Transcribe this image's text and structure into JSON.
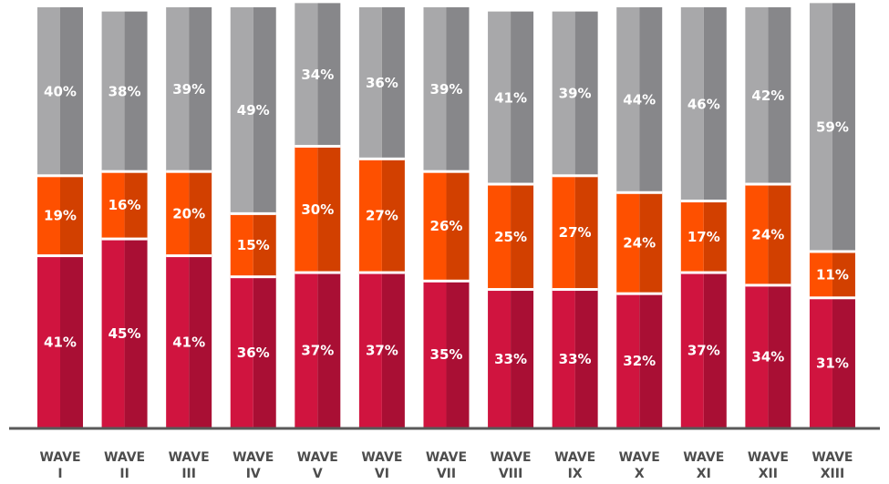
{
  "chart_data": {
    "type": "bar",
    "stacked": true,
    "orientation": "vertical",
    "categories": [
      [
        "WAVE",
        "I"
      ],
      [
        "WAVE",
        "II"
      ],
      [
        "WAVE",
        "III"
      ],
      [
        "WAVE",
        "IV"
      ],
      [
        "WAVE",
        "V"
      ],
      [
        "WAVE",
        "VI"
      ],
      [
        "WAVE",
        "VII"
      ],
      [
        "WAVE",
        "VIII"
      ],
      [
        "WAVE",
        "IX"
      ],
      [
        "WAVE",
        "X"
      ],
      [
        "WAVE",
        "XI"
      ],
      [
        "WAVE",
        "XII"
      ],
      [
        "WAVE",
        "XIII"
      ]
    ],
    "series": [
      {
        "values": [
          41,
          45,
          41,
          36,
          37,
          37,
          35,
          33,
          33,
          32,
          37,
          34,
          31
        ],
        "labels": [
          "41%",
          "45%",
          "41%",
          "36%",
          "37%",
          "37%",
          "35%",
          "33%",
          "33%",
          "32%",
          "37%",
          "34%",
          "31%"
        ]
      },
      {
        "values": [
          19,
          16,
          20,
          15,
          30,
          27,
          26,
          25,
          27,
          24,
          17,
          24,
          11
        ],
        "labels": [
          "19%",
          "16%",
          "20%",
          "15%",
          "30%",
          "27%",
          "26%",
          "25%",
          "27%",
          "24%",
          "17%",
          "24%",
          "11%"
        ]
      },
      {
        "values": [
          40,
          38,
          39,
          49,
          34,
          36,
          39,
          41,
          39,
          44,
          46,
          42,
          59
        ],
        "labels": [
          "40%",
          "38%",
          "39%",
          "49%",
          "34%",
          "36%",
          "39%",
          "41%",
          "39%",
          "44%",
          "46%",
          "42%",
          "59%"
        ]
      }
    ],
    "value_unit": "%",
    "ylim": [
      0,
      100
    ],
    "grid": false,
    "legend": "none",
    "colors": {
      "series_light": [
        "#d0143f",
        "#fe5000",
        "#a8a8aa"
      ],
      "series_dark": [
        "#a90f34",
        "#d24000",
        "#87878a"
      ],
      "separator": "#ffffff",
      "axis": "#595959",
      "tick_text": "#4d4d4d",
      "label_text": "#ffffff"
    }
  }
}
